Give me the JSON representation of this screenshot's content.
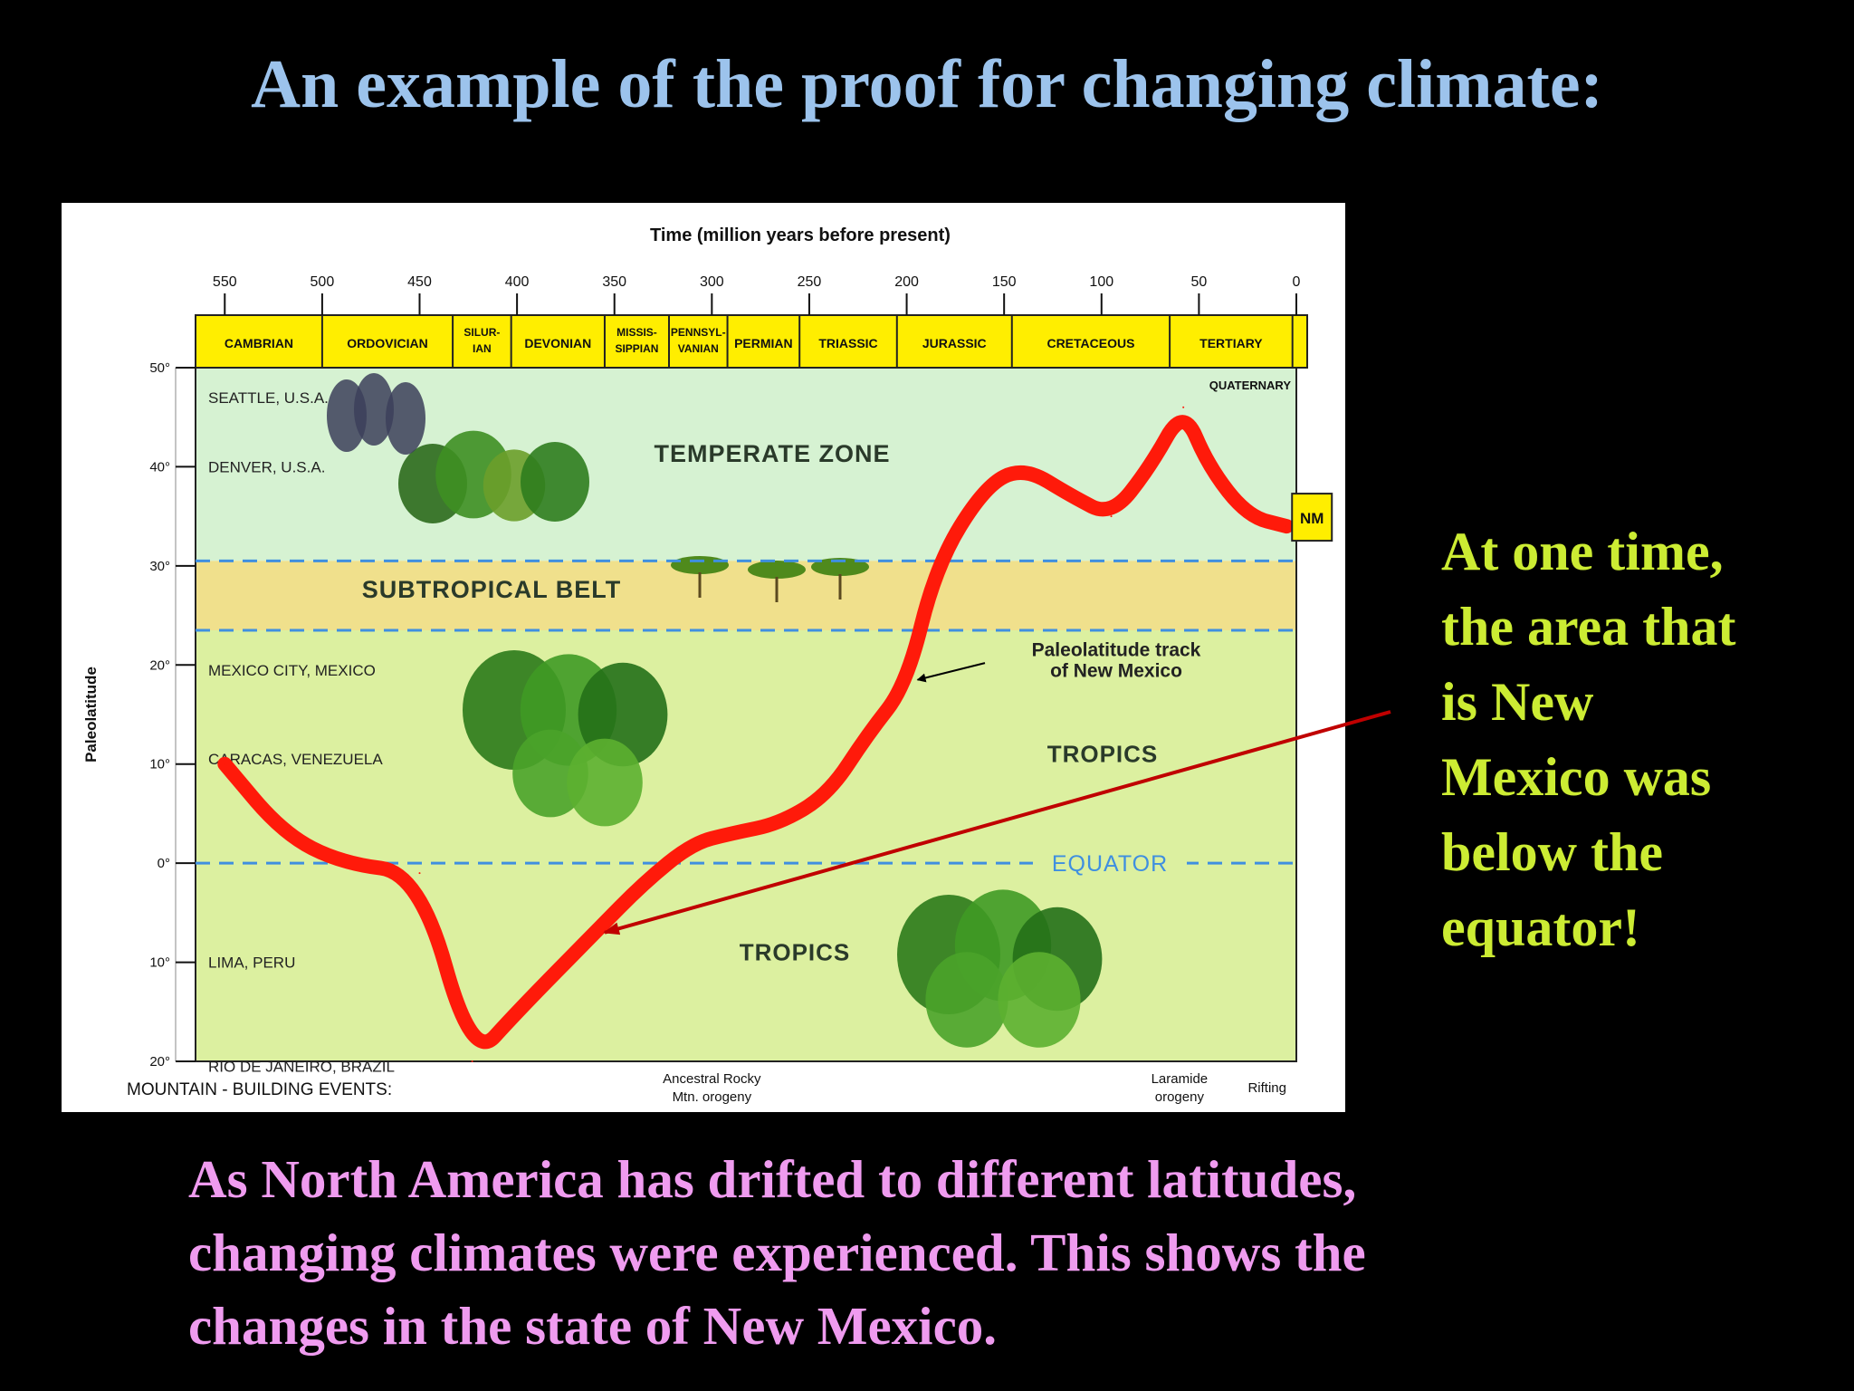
{
  "slide": {
    "title": "An example of the proof for changing climate:",
    "callout_lines": [
      "At one time,",
      "the area that",
      "is New",
      "Mexico was",
      "below the",
      "equator!"
    ],
    "caption_lines": [
      "As North America has drifted to different latitudes,",
      "changing climates were experienced.  This shows the",
      "changes in the state of New Mexico."
    ]
  },
  "colors": {
    "background": "#000000",
    "title": "#9cc3ec",
    "callout": "#ccec33",
    "caption": "#ef9bef",
    "track": "#ff1a0a",
    "period_bar": "#ffee00",
    "temperate": "#d6f2d2",
    "subtropical": "#f0e08c",
    "tropics": "#dcf0a0",
    "dashed_line": "#3f8fe0",
    "arrow": "#c00000"
  },
  "chart_data": {
    "type": "line",
    "xlabel": "Time (million years before present)",
    "ylabel": "Paleolatitude",
    "xlim": [
      565,
      0
    ],
    "ylim": [
      -20,
      50
    ],
    "x_ticks": [
      550,
      500,
      450,
      400,
      350,
      300,
      250,
      200,
      150,
      100,
      50,
      0
    ],
    "y_ticks": [
      {
        "value": 50,
        "label": "50°"
      },
      {
        "value": 40,
        "label": "40°"
      },
      {
        "value": 30,
        "label": "30°"
      },
      {
        "value": 20,
        "label": "20°"
      },
      {
        "value": 10,
        "label": "10°"
      },
      {
        "value": 0,
        "label": "0°"
      },
      {
        "value": -10,
        "label": "10°"
      },
      {
        "value": -20,
        "label": "20°"
      }
    ],
    "periods": [
      {
        "lines": [
          "CAMBRIAN"
        ],
        "start": 565,
        "end": 500
      },
      {
        "lines": [
          "ORDOVICIAN"
        ],
        "start": 500,
        "end": 433
      },
      {
        "lines": [
          "SILUR-",
          "IAN"
        ],
        "start": 433,
        "end": 403
      },
      {
        "lines": [
          "DEVONIAN"
        ],
        "start": 403,
        "end": 355
      },
      {
        "lines": [
          "MISSIS-",
          "SIPPIAN"
        ],
        "start": 355,
        "end": 322
      },
      {
        "lines": [
          "PENNSYL-",
          "VANIAN"
        ],
        "start": 322,
        "end": 292
      },
      {
        "lines": [
          "PERMIAN"
        ],
        "start": 292,
        "end": 255
      },
      {
        "lines": [
          "TRIASSIC"
        ],
        "start": 255,
        "end": 205
      },
      {
        "lines": [
          "JURASSIC"
        ],
        "start": 205,
        "end": 146
      },
      {
        "lines": [
          "CRETACEOUS"
        ],
        "start": 146,
        "end": 65
      },
      {
        "lines": [
          "TERTIARY"
        ],
        "start": 65,
        "end": 2
      }
    ],
    "quaternary_label": "QUATERNARY",
    "zones": [
      {
        "name": "TEMPERATE ZONE",
        "from": 30.5,
        "to": 50
      },
      {
        "name": "SUBTROPICAL BELT",
        "from": 23.5,
        "to": 30.5
      },
      {
        "name": "TROPICS",
        "from": -20,
        "to": 23.5
      }
    ],
    "equator_label": "EQUATOR",
    "tropics_label": "TROPICS",
    "cities": [
      {
        "name": "SEATTLE, U.S.A.",
        "lat": 47
      },
      {
        "name": "DENVER, U.S.A.",
        "lat": 40
      },
      {
        "name": "MEXICO CITY, MEXICO",
        "lat": 19.5
      },
      {
        "name": "CARACAS, VENEZUELA",
        "lat": 10.5
      },
      {
        "name": "LIMA, PERU",
        "lat": -10
      },
      {
        "name": "RIO DE JANEIRO, BRAZIL",
        "lat": -20.5
      }
    ],
    "series": [
      {
        "name": "Paleolatitude track of New Mexico",
        "x": [
          550,
          520,
          490,
          450,
          423,
          400,
          360,
          335,
          310,
          290,
          265,
          240,
          220,
          200,
          185,
          160,
          140,
          115,
          95,
          75,
          58,
          45,
          25,
          5
        ],
        "y": [
          10,
          3,
          0,
          -1,
          -20,
          -15,
          -7,
          -2,
          2,
          3,
          4,
          7,
          13,
          18,
          30,
          38,
          40,
          37,
          35,
          40,
          46,
          40,
          35,
          34
        ]
      }
    ],
    "track_label_lines": [
      "Paleolatitude track",
      "of New Mexico"
    ],
    "nm_marker": "NM",
    "mountain_events_label": "MOUNTAIN - BUILDING EVENTS:",
    "mountain_events": [
      {
        "lines": [
          "Ancestral Rocky",
          "Mtn. orogeny"
        ],
        "time": 300
      },
      {
        "lines": [
          "Laramide",
          "orogeny"
        ],
        "time": 60
      },
      {
        "lines": [
          "Rifting"
        ],
        "time": 15
      }
    ]
  }
}
